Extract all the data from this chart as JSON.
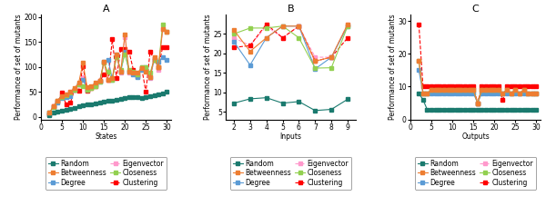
{
  "A": {
    "xlabel": "States",
    "ylabel": "Performance of set of mutants",
    "title": "A",
    "xlim": [
      0,
      31
    ],
    "ylim": [
      -5,
      205
    ],
    "xticks": [
      0,
      5,
      10,
      15,
      20,
      25,
      30
    ],
    "yticks": [
      0,
      50,
      100,
      150,
      200
    ],
    "series": {
      "Random": {
        "x": [
          2,
          3,
          4,
          5,
          6,
          7,
          8,
          9,
          10,
          11,
          12,
          13,
          14,
          15,
          16,
          17,
          18,
          19,
          20,
          21,
          22,
          23,
          24,
          25,
          26,
          27,
          28,
          29,
          30
        ],
        "y": [
          3,
          8,
          10,
          12,
          14,
          16,
          18,
          21,
          24,
          25,
          26,
          27,
          28,
          30,
          32,
          33,
          35,
          36,
          38,
          39,
          40,
          39,
          38,
          40,
          41,
          43,
          45,
          47,
          50
        ],
        "color": "#1a7a6e",
        "marker": "s",
        "linestyle": "-",
        "zorder": 3
      },
      "Degree": {
        "x": [
          2,
          3,
          4,
          5,
          6,
          7,
          8,
          9,
          10,
          11,
          12,
          13,
          14,
          15,
          16,
          17,
          18,
          19,
          20,
          21,
          22,
          23,
          24,
          25,
          26,
          27,
          28,
          29,
          30
        ],
        "y": [
          8,
          20,
          28,
          38,
          40,
          42,
          55,
          65,
          75,
          55,
          60,
          65,
          70,
          110,
          115,
          75,
          125,
          90,
          130,
          90,
          85,
          80,
          95,
          100,
          80,
          115,
          110,
          120,
          115
        ],
        "color": "#5b9bd5",
        "marker": "s",
        "linestyle": "-",
        "zorder": 3
      },
      "Closeness": {
        "x": [
          2,
          3,
          4,
          5,
          6,
          7,
          8,
          9,
          10,
          11,
          12,
          13,
          14,
          15,
          16,
          17,
          18,
          19,
          20,
          21,
          22,
          23,
          24,
          25,
          26,
          27,
          28,
          29,
          30
        ],
        "y": [
          8,
          20,
          32,
          40,
          44,
          48,
          55,
          65,
          62,
          55,
          58,
          62,
          70,
          108,
          90,
          75,
          120,
          95,
          125,
          95,
          90,
          85,
          100,
          100,
          88,
          115,
          100,
          185,
          170
        ],
        "color": "#92d050",
        "marker": "s",
        "linestyle": "-",
        "zorder": 3
      },
      "Betweenness": {
        "x": [
          2,
          3,
          4,
          5,
          6,
          7,
          8,
          9,
          10,
          11,
          12,
          13,
          14,
          15,
          16,
          17,
          18,
          19,
          20,
          21,
          22,
          23,
          24,
          25,
          26,
          27,
          28,
          29,
          30
        ],
        "y": [
          8,
          22,
          33,
          42,
          45,
          50,
          58,
          68,
          108,
          60,
          62,
          68,
          72,
          110,
          75,
          78,
          125,
          90,
          165,
          90,
          88,
          88,
          98,
          90,
          80,
          120,
          100,
          175,
          170
        ],
        "color": "#ed7d31",
        "marker": "s",
        "linestyle": "-",
        "zorder": 3
      },
      "Eigenvector": {
        "x": [
          2,
          3,
          4,
          5,
          6,
          7,
          8,
          9,
          10,
          11,
          12,
          13,
          14,
          15,
          16,
          17,
          18,
          19,
          20,
          21,
          22,
          23,
          24,
          25,
          26,
          27,
          28,
          29,
          30
        ],
        "y": [
          8,
          22,
          33,
          42,
          45,
          50,
          55,
          65,
          80,
          55,
          60,
          65,
          72,
          108,
          75,
          76,
          122,
          88,
          160,
          88,
          90,
          85,
          100,
          95,
          78,
          115,
          95,
          175,
          170
        ],
        "color": "#ff99cc",
        "marker": "s",
        "linestyle": "--",
        "zorder": 2
      },
      "Clustering": {
        "x": [
          2,
          3,
          4,
          5,
          6,
          7,
          8,
          9,
          10,
          11,
          12,
          13,
          14,
          15,
          16,
          17,
          18,
          19,
          20,
          21,
          22,
          23,
          24,
          25,
          26,
          27,
          28,
          29,
          30
        ],
        "y": [
          6,
          22,
          30,
          48,
          25,
          28,
          55,
          52,
          102,
          52,
          58,
          62,
          72,
          85,
          75,
          155,
          78,
          135,
          135,
          130,
          95,
          82,
          98,
          50,
          130,
          115,
          100,
          140,
          140
        ],
        "color": "#ff0000",
        "marker": "s",
        "linestyle": "--",
        "zorder": 2
      }
    }
  },
  "B": {
    "xlabel": "Inputs",
    "ylabel": "Performance of set of mutants",
    "title": "B",
    "xlim": [
      1.5,
      9.5
    ],
    "ylim": [
      3,
      30
    ],
    "xticks": [
      2,
      3,
      4,
      5,
      6,
      7,
      8,
      9
    ],
    "yticks": [
      5,
      10,
      15,
      20,
      25
    ],
    "series": {
      "Random": {
        "x": [
          2,
          3,
          4,
          5,
          6,
          7,
          8,
          9
        ],
        "y": [
          7.2,
          8.3,
          8.6,
          7.2,
          7.6,
          5.3,
          5.6,
          8.2
        ],
        "color": "#1a7a6e",
        "marker": "s",
        "linestyle": "-",
        "zorder": 3
      },
      "Degree": {
        "x": [
          2,
          3,
          4,
          5,
          6,
          7,
          8,
          9
        ],
        "y": [
          23,
          17,
          24,
          27,
          27,
          16,
          19,
          27
        ],
        "color": "#5b9bd5",
        "marker": "s",
        "linestyle": "-",
        "zorder": 3
      },
      "Closeness": {
        "x": [
          2,
          3,
          4,
          5,
          6,
          7,
          8,
          9
        ],
        "y": [
          25,
          26.5,
          26.5,
          27,
          24,
          16.2,
          16.3,
          27
        ],
        "color": "#92d050",
        "marker": "s",
        "linestyle": "-",
        "zorder": 3
      },
      "Betweenness": {
        "x": [
          2,
          3,
          4,
          5,
          6,
          7,
          8,
          9
        ],
        "y": [
          26,
          20.5,
          24,
          27,
          27,
          18,
          19,
          27.5
        ],
        "color": "#ed7d31",
        "marker": "s",
        "linestyle": "-",
        "zorder": 3
      },
      "Eigenvector": {
        "x": [
          2,
          3,
          4,
          5,
          6,
          7,
          8,
          9
        ],
        "y": [
          24,
          22,
          27,
          24,
          27,
          19,
          19,
          27.5
        ],
        "color": "#ff99cc",
        "marker": "s",
        "linestyle": "--",
        "zorder": 2
      },
      "Clustering": {
        "x": [
          2,
          3,
          4,
          5,
          6,
          7,
          8,
          9
        ],
        "y": [
          21.5,
          22,
          27.5,
          24,
          27,
          18,
          19,
          24
        ],
        "color": "#ff0000",
        "marker": "s",
        "linestyle": "--",
        "zorder": 2
      }
    }
  },
  "C": {
    "xlabel": "Outputs",
    "ylabel": "Performance of set of mutants",
    "title": "C",
    "xlim": [
      0,
      31
    ],
    "ylim": [
      0,
      32
    ],
    "xticks": [
      0,
      5,
      10,
      15,
      20,
      25,
      30
    ],
    "yticks": [
      0,
      10,
      20,
      30
    ],
    "series": {
      "Random": {
        "x": [
          2,
          3,
          4,
          5,
          6,
          7,
          8,
          9,
          10,
          11,
          12,
          13,
          14,
          15,
          16,
          17,
          18,
          19,
          20,
          21,
          22,
          23,
          24,
          25,
          26,
          27,
          28,
          29,
          30
        ],
        "y": [
          8,
          6,
          3,
          3,
          3,
          3,
          3,
          3,
          3,
          3,
          3,
          3,
          3,
          3,
          3,
          3,
          3,
          3,
          3,
          3,
          3,
          3,
          3,
          3,
          3,
          3,
          3,
          3,
          3
        ],
        "color": "#1a7a6e",
        "marker": "s",
        "linestyle": "-",
        "zorder": 3
      },
      "Degree": {
        "x": [
          2,
          3,
          4,
          5,
          6,
          7,
          8,
          9,
          10,
          11,
          12,
          13,
          14,
          15,
          16,
          17,
          18,
          19,
          20,
          21,
          22,
          23,
          24,
          25,
          26,
          27,
          28,
          29,
          30
        ],
        "y": [
          15,
          8,
          8,
          8,
          8,
          8,
          8,
          8,
          8,
          8,
          8,
          8,
          8,
          8,
          5,
          8,
          8,
          8,
          8,
          8,
          8,
          8,
          8,
          8,
          8,
          8,
          8,
          8,
          8
        ],
        "color": "#5b9bd5",
        "marker": "s",
        "linestyle": "-",
        "zorder": 3
      },
      "Closeness": {
        "x": [
          2,
          3,
          4,
          5,
          6,
          7,
          8,
          9,
          10,
          11,
          12,
          13,
          14,
          15,
          16,
          17,
          18,
          19,
          20,
          21,
          22,
          23,
          24,
          25,
          26,
          27,
          28,
          29,
          30
        ],
        "y": [
          18,
          8,
          8,
          9,
          9,
          9,
          9,
          9,
          9,
          9,
          9,
          9,
          9,
          9,
          5,
          9,
          9,
          9,
          9,
          9,
          8,
          9,
          8,
          9,
          8,
          9,
          8,
          8,
          8
        ],
        "color": "#92d050",
        "marker": "s",
        "linestyle": "-",
        "zorder": 3
      },
      "Betweenness": {
        "x": [
          2,
          3,
          4,
          5,
          6,
          7,
          8,
          9,
          10,
          11,
          12,
          13,
          14,
          15,
          16,
          17,
          18,
          19,
          20,
          21,
          22,
          23,
          24,
          25,
          26,
          27,
          28,
          29,
          30
        ],
        "y": [
          18,
          8,
          8,
          9,
          9,
          9,
          9,
          9,
          9,
          9,
          9,
          9,
          9,
          9,
          5,
          9,
          9,
          9,
          9,
          9,
          8,
          9,
          8,
          9,
          8,
          9,
          8,
          8,
          8
        ],
        "color": "#ed7d31",
        "marker": "s",
        "linestyle": "-",
        "zorder": 3
      },
      "Eigenvector": {
        "x": [
          2,
          3,
          4,
          5,
          6,
          7,
          8,
          9,
          10,
          11,
          12,
          13,
          14,
          15,
          16,
          17,
          18,
          19,
          20,
          21,
          22,
          23,
          24,
          25,
          26,
          27,
          28,
          29,
          30
        ],
        "y": [
          18,
          8,
          8,
          9,
          9,
          9,
          9,
          9,
          9,
          9,
          9,
          9,
          9,
          9,
          5,
          9,
          9,
          9,
          9,
          9,
          8,
          9,
          8,
          9,
          8,
          9,
          8,
          8,
          8
        ],
        "color": "#ff99cc",
        "marker": "s",
        "linestyle": "--",
        "zorder": 2
      },
      "Clustering": {
        "x": [
          2,
          3,
          4,
          5,
          6,
          7,
          8,
          9,
          10,
          11,
          12,
          13,
          14,
          15,
          16,
          17,
          18,
          19,
          20,
          21,
          22,
          23,
          24,
          25,
          26,
          27,
          28,
          29,
          30
        ],
        "y": [
          29,
          10,
          10,
          10,
          10,
          10,
          10,
          10,
          10,
          10,
          10,
          10,
          10,
          10,
          5,
          10,
          10,
          10,
          10,
          10,
          6,
          10,
          10,
          10,
          10,
          10,
          10,
          10,
          10
        ],
        "color": "#ff0000",
        "marker": "s",
        "linestyle": "--",
        "zorder": 2
      }
    }
  },
  "legend_entries": [
    {
      "label": "Random",
      "color": "#1a7a6e",
      "marker": "s",
      "linestyle": "-"
    },
    {
      "label": "Betweenness",
      "color": "#ed7d31",
      "marker": "s",
      "linestyle": "-"
    },
    {
      "label": "Degree",
      "color": "#5b9bd5",
      "marker": "s",
      "linestyle": "-"
    },
    {
      "label": "Eigenvector",
      "color": "#ff99cc",
      "marker": "s",
      "linestyle": "--"
    },
    {
      "label": "Closeness",
      "color": "#92d050",
      "marker": "s",
      "linestyle": "-"
    },
    {
      "label": "Clustering",
      "color": "#ff0000",
      "marker": "s",
      "linestyle": "--"
    }
  ],
  "markersize": 3.0,
  "linewidth": 0.8,
  "title_fontsize": 8,
  "label_fontsize": 5.5,
  "tick_fontsize": 5.5,
  "legend_fontsize": 5.5
}
